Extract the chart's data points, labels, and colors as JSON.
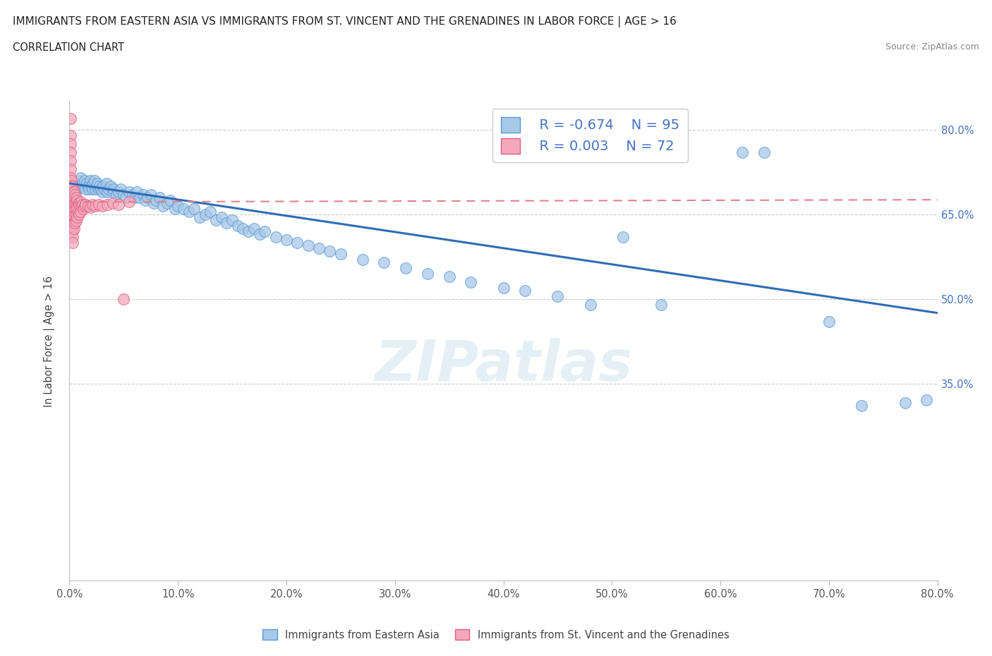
{
  "title_line1": "IMMIGRANTS FROM EASTERN ASIA VS IMMIGRANTS FROM ST. VINCENT AND THE GRENADINES IN LABOR FORCE | AGE > 16",
  "title_line2": "CORRELATION CHART",
  "source_text": "Source: ZipAtlas.com",
  "ylabel": "In Labor Force | Age > 16",
  "legend_label1": "Immigrants from Eastern Asia",
  "legend_label2": "Immigrants from St. Vincent and the Grenadines",
  "r1": -0.674,
  "n1": 95,
  "r2": 0.003,
  "n2": 72,
  "color_blue": "#a8c8e8",
  "color_pink": "#f4a8bc",
  "edge_blue": "#5b9bd5",
  "edge_pink": "#e06080",
  "trendline_blue": "#2e6db4",
  "trendline_pink": "#e08090",
  "watermark": "ZIPatlas",
  "xlim": [
    0.0,
    0.8
  ],
  "ylim": [
    0.0,
    0.85
  ],
  "yticks": [
    0.35,
    0.5,
    0.65,
    0.8
  ],
  "ytick_labels": [
    "35.0%",
    "50.0%",
    "65.0%",
    "80.0%"
  ],
  "xticks": [
    0.0,
    0.1,
    0.2,
    0.3,
    0.4,
    0.5,
    0.6,
    0.7,
    0.8
  ],
  "xtick_labels": [
    "0.0%",
    "10.0%",
    "20.0%",
    "30.0%",
    "40.0%",
    "50.0%",
    "60.0%",
    "70.0%",
    "80.0%"
  ],
  "blue_trend_x": [
    0.0,
    0.8
  ],
  "blue_trend_y": [
    0.705,
    0.475
  ],
  "pink_trend_x": [
    0.0,
    0.8
  ],
  "pink_trend_y": [
    0.672,
    0.676
  ],
  "blue_x": [
    0.005,
    0.006,
    0.007,
    0.008,
    0.01,
    0.011,
    0.012,
    0.014,
    0.015,
    0.016,
    0.017,
    0.018,
    0.019,
    0.02,
    0.021,
    0.022,
    0.023,
    0.024,
    0.025,
    0.026,
    0.027,
    0.028,
    0.029,
    0.03,
    0.031,
    0.032,
    0.034,
    0.035,
    0.036,
    0.038,
    0.04,
    0.041,
    0.043,
    0.045,
    0.047,
    0.05,
    0.052,
    0.055,
    0.058,
    0.06,
    0.062,
    0.065,
    0.068,
    0.07,
    0.072,
    0.075,
    0.078,
    0.08,
    0.083,
    0.086,
    0.09,
    0.093,
    0.097,
    0.1,
    0.105,
    0.11,
    0.115,
    0.12,
    0.125,
    0.13,
    0.135,
    0.14,
    0.145,
    0.15,
    0.155,
    0.16,
    0.165,
    0.17,
    0.175,
    0.18,
    0.19,
    0.2,
    0.21,
    0.22,
    0.23,
    0.24,
    0.25,
    0.27,
    0.29,
    0.31,
    0.33,
    0.35,
    0.37,
    0.4,
    0.42,
    0.45,
    0.48,
    0.51,
    0.545,
    0.62,
    0.64,
    0.7,
    0.73,
    0.77,
    0.79
  ],
  "blue_y": [
    0.705,
    0.7,
    0.695,
    0.71,
    0.715,
    0.7,
    0.705,
    0.71,
    0.695,
    0.705,
    0.7,
    0.695,
    0.71,
    0.7,
    0.695,
    0.705,
    0.71,
    0.695,
    0.7,
    0.705,
    0.695,
    0.7,
    0.695,
    0.69,
    0.7,
    0.695,
    0.705,
    0.69,
    0.695,
    0.7,
    0.69,
    0.695,
    0.685,
    0.69,
    0.695,
    0.685,
    0.68,
    0.69,
    0.685,
    0.68,
    0.69,
    0.68,
    0.685,
    0.675,
    0.68,
    0.685,
    0.67,
    0.675,
    0.68,
    0.665,
    0.67,
    0.675,
    0.66,
    0.665,
    0.66,
    0.655,
    0.66,
    0.645,
    0.65,
    0.655,
    0.64,
    0.645,
    0.635,
    0.64,
    0.63,
    0.625,
    0.62,
    0.625,
    0.615,
    0.62,
    0.61,
    0.605,
    0.6,
    0.595,
    0.59,
    0.585,
    0.58,
    0.57,
    0.565,
    0.555,
    0.545,
    0.54,
    0.53,
    0.52,
    0.515,
    0.505,
    0.49,
    0.61,
    0.49,
    0.76,
    0.76,
    0.46,
    0.31,
    0.315,
    0.32
  ],
  "pink_x": [
    0.001,
    0.001,
    0.001,
    0.001,
    0.001,
    0.001,
    0.001,
    0.001,
    0.001,
    0.001,
    0.002,
    0.002,
    0.002,
    0.002,
    0.002,
    0.002,
    0.002,
    0.002,
    0.002,
    0.002,
    0.003,
    0.003,
    0.003,
    0.003,
    0.003,
    0.003,
    0.003,
    0.003,
    0.003,
    0.003,
    0.003,
    0.004,
    0.004,
    0.004,
    0.004,
    0.004,
    0.004,
    0.004,
    0.005,
    0.005,
    0.005,
    0.005,
    0.005,
    0.006,
    0.006,
    0.006,
    0.006,
    0.007,
    0.007,
    0.007,
    0.008,
    0.008,
    0.009,
    0.009,
    0.01,
    0.01,
    0.011,
    0.012,
    0.013,
    0.014,
    0.015,
    0.017,
    0.019,
    0.021,
    0.024,
    0.027,
    0.03,
    0.035,
    0.04,
    0.045,
    0.05,
    0.055
  ],
  "pink_y": [
    0.82,
    0.79,
    0.775,
    0.76,
    0.745,
    0.73,
    0.715,
    0.705,
    0.695,
    0.685,
    0.71,
    0.7,
    0.695,
    0.685,
    0.675,
    0.665,
    0.655,
    0.645,
    0.635,
    0.625,
    0.7,
    0.69,
    0.68,
    0.67,
    0.66,
    0.65,
    0.64,
    0.63,
    0.62,
    0.61,
    0.6,
    0.69,
    0.68,
    0.665,
    0.655,
    0.645,
    0.635,
    0.625,
    0.685,
    0.67,
    0.66,
    0.648,
    0.635,
    0.68,
    0.665,
    0.65,
    0.638,
    0.675,
    0.66,
    0.645,
    0.67,
    0.655,
    0.668,
    0.65,
    0.672,
    0.655,
    0.665,
    0.668,
    0.66,
    0.665,
    0.668,
    0.665,
    0.662,
    0.667,
    0.665,
    0.668,
    0.665,
    0.668,
    0.67,
    0.667,
    0.5,
    0.672
  ]
}
